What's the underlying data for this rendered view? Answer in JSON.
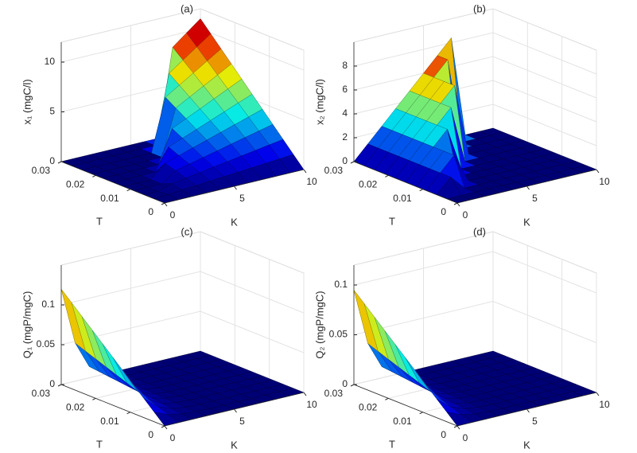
{
  "chart_data": [
    {
      "type": "surface",
      "title": "(a)",
      "xlabel": "K",
      "ylabel": "T",
      "zlabel": "x₁ (mgC/l)",
      "colormap": "jet",
      "grid": true,
      "x": [
        0,
        1,
        2,
        3,
        4,
        5,
        6,
        7,
        8,
        9,
        10
      ],
      "y": [
        0,
        0.003,
        0.006,
        0.009,
        0.012,
        0.015,
        0.018,
        0.021,
        0.024,
        0.027,
        0.03
      ],
      "z": [
        [
          0,
          0,
          0,
          0,
          0,
          0,
          0,
          0,
          0,
          0,
          0
        ],
        [
          0,
          0.11,
          0.22,
          0.33,
          0.44,
          0.55,
          0.66,
          0.77,
          0.88,
          0.99,
          1.1
        ],
        [
          0,
          0,
          0.44,
          0.66,
          0.88,
          1.1,
          1.32,
          1.54,
          1.76,
          1.98,
          2.2
        ],
        [
          0,
          0,
          0,
          0.99,
          1.32,
          1.65,
          1.98,
          2.31,
          2.64,
          2.97,
          3.3
        ],
        [
          0,
          0,
          0,
          1.32,
          1.76,
          2.2,
          2.64,
          3.08,
          3.52,
          3.96,
          4.4
        ],
        [
          0,
          0,
          0,
          0,
          2.2,
          2.75,
          3.3,
          3.85,
          4.4,
          4.95,
          5.5
        ],
        [
          0,
          0,
          0,
          0,
          0,
          3.3,
          3.96,
          4.62,
          5.28,
          5.94,
          6.6
        ],
        [
          0,
          0,
          0,
          0,
          0,
          0,
          4.62,
          5.39,
          6.16,
          6.93,
          7.7
        ],
        [
          0,
          0,
          0,
          0,
          0,
          0,
          5.28,
          6.16,
          7.04,
          7.92,
          8.8
        ],
        [
          0,
          0,
          0,
          0,
          0,
          0,
          0,
          6.93,
          7.92,
          8.91,
          9.9
        ],
        [
          0,
          0,
          0,
          0,
          0,
          0,
          0,
          0,
          8.8,
          9.9,
          11
        ]
      ],
      "xlim": [
        0,
        10
      ],
      "ylim": [
        0,
        0.03
      ],
      "zlim": [
        0,
        12
      ],
      "xticks": [
        0,
        5,
        10
      ],
      "yticks": [
        0,
        0.01,
        0.02,
        0.03
      ],
      "zticks": [
        0,
        5,
        10
      ]
    },
    {
      "type": "surface",
      "title": "(b)",
      "xlabel": "K",
      "ylabel": "T",
      "zlabel": "x₂ (mgC/l)",
      "colormap": "jet",
      "grid": true,
      "x": [
        0,
        1,
        2,
        3,
        4,
        5,
        6,
        7,
        8,
        9,
        10
      ],
      "y": [
        0,
        0.003,
        0.006,
        0.009,
        0.012,
        0.015,
        0.018,
        0.021,
        0.024,
        0.027,
        0.03
      ],
      "z": [
        [
          0,
          0,
          0,
          0,
          0,
          0,
          0,
          0,
          0,
          0,
          0
        ],
        [
          0,
          0,
          0,
          0,
          0,
          0,
          0,
          0,
          0,
          0,
          0
        ],
        [
          0,
          1.2,
          0,
          0,
          0,
          0,
          0,
          0,
          0,
          0,
          0
        ],
        [
          0,
          1.2,
          2.4,
          0,
          0,
          0,
          0,
          0,
          0,
          0,
          0
        ],
        [
          0,
          1.2,
          2.4,
          0,
          0,
          0,
          0,
          0,
          0,
          0,
          0
        ],
        [
          0,
          1.2,
          2.4,
          3.6,
          0,
          0,
          0,
          0,
          0,
          0,
          0
        ],
        [
          0,
          1.2,
          2.4,
          3.6,
          4.8,
          0,
          0,
          0,
          0,
          0,
          0
        ],
        [
          0,
          1.2,
          2.4,
          3.6,
          4.8,
          6,
          0,
          0,
          0,
          0,
          0
        ],
        [
          0,
          1.2,
          2.4,
          3.6,
          4.8,
          6,
          0,
          0,
          0,
          0,
          0
        ],
        [
          0,
          1.2,
          2.4,
          3.6,
          4.8,
          6,
          7.2,
          0,
          0,
          0,
          0
        ],
        [
          0,
          1.2,
          2.4,
          3.6,
          4.8,
          6,
          7.2,
          8.4,
          0,
          0,
          0
        ]
      ],
      "xlim": [
        0,
        10
      ],
      "ylim": [
        0,
        0.03
      ],
      "zlim": [
        0,
        10
      ],
      "xticks": [
        0,
        5,
        10
      ],
      "yticks": [
        0,
        0.01,
        0.02,
        0.03
      ],
      "zticks": [
        0,
        2,
        4,
        6,
        8
      ]
    },
    {
      "type": "surface",
      "title": "(c)",
      "xlabel": "K",
      "ylabel": "T",
      "zlabel": "Q₁ (mgP/mgC)",
      "colormap": "jet",
      "grid": true,
      "x": [
        0,
        1,
        2,
        3,
        4,
        5,
        6,
        7,
        8,
        9,
        10
      ],
      "y": [
        0,
        0.003,
        0.006,
        0.009,
        0.012,
        0.015,
        0.018,
        0.021,
        0.024,
        0.027,
        0.03
      ],
      "z": [
        [
          0,
          0,
          0,
          0,
          0,
          0,
          0,
          0,
          0,
          0,
          0
        ],
        [
          0.012,
          0.0048,
          0.0014,
          0.0004,
          0,
          0,
          0,
          0,
          0,
          0,
          0
        ],
        [
          0.024,
          0.0096,
          0.0029,
          0.0007,
          0,
          0,
          0,
          0,
          0,
          0,
          0
        ],
        [
          0.036,
          0.0144,
          0.0043,
          0.0011,
          0,
          0,
          0,
          0,
          0,
          0,
          0
        ],
        [
          0.048,
          0.0192,
          0.0058,
          0.0014,
          0,
          0,
          0,
          0,
          0,
          0,
          0
        ],
        [
          0.06,
          0.024,
          0.0072,
          0.0018,
          0,
          0,
          0,
          0,
          0,
          0,
          0
        ],
        [
          0.072,
          0.0288,
          0.0086,
          0.0022,
          0,
          0,
          0,
          0,
          0,
          0,
          0
        ],
        [
          0.084,
          0.0336,
          0.0101,
          0.0025,
          0,
          0,
          0,
          0,
          0,
          0,
          0
        ],
        [
          0.096,
          0.0384,
          0.0115,
          0.0029,
          0,
          0,
          0,
          0,
          0,
          0,
          0
        ],
        [
          0.108,
          0.0432,
          0.013,
          0.0032,
          0,
          0,
          0,
          0,
          0,
          0,
          0
        ],
        [
          0.12,
          0.048,
          0.0144,
          0.0036,
          0,
          0,
          0,
          0,
          0,
          0,
          0
        ]
      ],
      "xlim": [
        0,
        10
      ],
      "ylim": [
        0,
        0.03
      ],
      "zlim": [
        0,
        0.15
      ],
      "xticks": [
        0,
        5,
        10
      ],
      "yticks": [
        0,
        0.01,
        0.02,
        0.03
      ],
      "zticks": [
        0,
        0.05,
        0.1
      ]
    },
    {
      "type": "surface",
      "title": "(d)",
      "xlabel": "K",
      "ylabel": "T",
      "zlabel": "Q₂ (mgP/mgC)",
      "colormap": "jet",
      "grid": true,
      "x": [
        0,
        1,
        2,
        3,
        4,
        5,
        6,
        7,
        8,
        9,
        10
      ],
      "y": [
        0,
        0.003,
        0.006,
        0.009,
        0.012,
        0.015,
        0.018,
        0.021,
        0.024,
        0.027,
        0.03
      ],
      "z": [
        [
          0,
          0,
          0,
          0,
          0,
          0,
          0,
          0,
          0,
          0,
          0
        ],
        [
          0.0095,
          0.0038,
          0.0011,
          0.0003,
          0,
          0,
          0,
          0,
          0,
          0,
          0
        ],
        [
          0.019,
          0.0076,
          0.0023,
          0.0006,
          0,
          0,
          0,
          0,
          0,
          0,
          0
        ],
        [
          0.0285,
          0.0114,
          0.0034,
          0.0009,
          0,
          0,
          0,
          0,
          0,
          0,
          0
        ],
        [
          0.038,
          0.0152,
          0.0046,
          0.0011,
          0,
          0,
          0,
          0,
          0,
          0,
          0
        ],
        [
          0.0475,
          0.019,
          0.0057,
          0.0014,
          0,
          0,
          0,
          0,
          0,
          0,
          0
        ],
        [
          0.057,
          0.0228,
          0.0068,
          0.0017,
          0,
          0,
          0,
          0,
          0,
          0,
          0
        ],
        [
          0.0665,
          0.0266,
          0.008,
          0.002,
          0,
          0,
          0,
          0,
          0,
          0,
          0
        ],
        [
          0.076,
          0.0304,
          0.0091,
          0.0023,
          0,
          0,
          0,
          0,
          0,
          0,
          0
        ],
        [
          0.0855,
          0.0342,
          0.0103,
          0.0026,
          0,
          0,
          0,
          0,
          0,
          0,
          0
        ],
        [
          0.095,
          0.038,
          0.0114,
          0.0029,
          0,
          0,
          0,
          0,
          0,
          0,
          0
        ]
      ],
      "xlim": [
        0,
        10
      ],
      "ylim": [
        0,
        0.03
      ],
      "zlim": [
        0,
        0.12
      ],
      "xticks": [
        0,
        5,
        10
      ],
      "yticks": [
        0,
        0.01,
        0.02,
        0.03
      ],
      "zticks": [
        0,
        0.05,
        0.1
      ]
    }
  ]
}
